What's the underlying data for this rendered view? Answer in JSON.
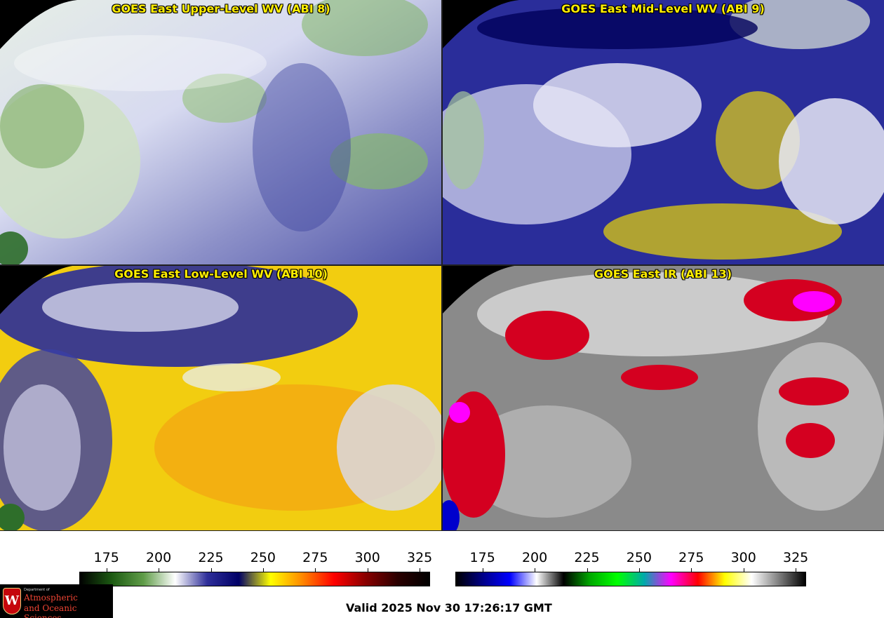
{
  "panels": [
    {
      "id": "p1",
      "title": "GOES East Upper-Level WV (ABI 8)",
      "palette": "wv_upper"
    },
    {
      "id": "p2",
      "title": "GOES East Mid-Level WV (ABI 9)",
      "palette": "wv_mid"
    },
    {
      "id": "p3",
      "title": "GOES East Low-Level WV (ABI 10)",
      "palette": "wv_low"
    },
    {
      "id": "p4",
      "title": "GOES East IR (ABI 13)",
      "palette": "ir"
    }
  ],
  "wv_scale": {
    "ticks": [
      "175",
      "200",
      "225",
      "250",
      "275",
      "300",
      "325"
    ],
    "tick_values": [
      175,
      200,
      225,
      250,
      275,
      300,
      325
    ],
    "min": 162,
    "max": 330,
    "colors": [
      "#000000",
      "#1c5a12",
      "#5f9c48",
      "#ffffff",
      "#2f2f9a",
      "#000066",
      "#ffff00",
      "#ff8800",
      "#ff0000",
      "#880000",
      "#2a0000",
      "#000000"
    ]
  },
  "ir_scale": {
    "ticks": [
      "175",
      "200",
      "225",
      "250",
      "275",
      "300",
      "325"
    ],
    "tick_values": [
      175,
      200,
      225,
      250,
      275,
      300,
      325
    ],
    "min": 162,
    "max": 330,
    "colors": [
      "#000000",
      "#000088",
      "#0000ff",
      "#ffffff",
      "#000000",
      "#00aa00",
      "#00ff00",
      "#00aaaa",
      "#ff00ff",
      "#ff0000",
      "#ffff00",
      "#ffffff",
      "#808080",
      "#000000"
    ]
  },
  "logo": {
    "crest_letter": "W",
    "dept": "Department of",
    "line1": "Atmospheric",
    "line2": "and Oceanic Sciences"
  },
  "valid_text": "Valid 2025 Nov 30 17:26:17 GMT",
  "colors": {
    "title_text": "#ffee00",
    "coastline": "#1f8a1f",
    "borders": "#8b4513",
    "state_lines": "#dd2222"
  }
}
